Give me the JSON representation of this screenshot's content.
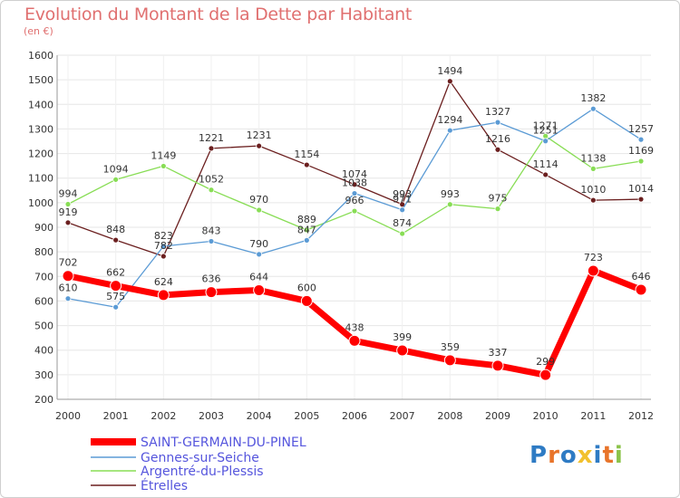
{
  "chart_data": {
    "type": "line",
    "title": "Evolution du Montant de la Dette par Habitant",
    "subtitle": "(en €)",
    "x": [
      "2000",
      "2001",
      "2002",
      "2003",
      "2004",
      "2005",
      "2006",
      "2007",
      "2008",
      "2009",
      "2010",
      "2011",
      "2012"
    ],
    "ylim": [
      200,
      1600
    ],
    "yticks": [
      200,
      300,
      400,
      500,
      600,
      700,
      800,
      900,
      1000,
      1100,
      1200,
      1300,
      1400,
      1500,
      1600
    ],
    "grid": true,
    "legend_position": "bottom-left",
    "series": [
      {
        "name": "SAINT-GERMAIN-DU-PINEL",
        "color": "#ff0000",
        "values": [
          702,
          662,
          624,
          636,
          644,
          600,
          438,
          399,
          359,
          337,
          299,
          723,
          646
        ]
      },
      {
        "name": "Gennes-sur-Seiche",
        "color": "#5b9bd5",
        "values": [
          610,
          575,
          823,
          843,
          790,
          847,
          1038,
          971,
          1294,
          1327,
          1251,
          1382,
          1257
        ]
      },
      {
        "name": "Argentré-du-Plessis",
        "color": "#88dd55",
        "values": [
          994,
          1094,
          1149,
          1052,
          970,
          889,
          966,
          874,
          993,
          975,
          1271,
          1138,
          1169
        ]
      },
      {
        "name": "Étrelles",
        "color": "#6b1f1f",
        "values": [
          919,
          848,
          782,
          1221,
          1231,
          1154,
          1074,
          993,
          1494,
          1216,
          1114,
          1010,
          1014
        ]
      }
    ]
  },
  "logo": {
    "text": "Proxiti",
    "letters": [
      "P",
      "r",
      "o",
      "x",
      "i",
      "t",
      "i"
    ],
    "colors": [
      "#2e7bc4",
      "#e8742a",
      "#2e7bc4",
      "#f2c12e",
      "#2e7bc4",
      "#e8742a",
      "#8bc34a"
    ]
  }
}
